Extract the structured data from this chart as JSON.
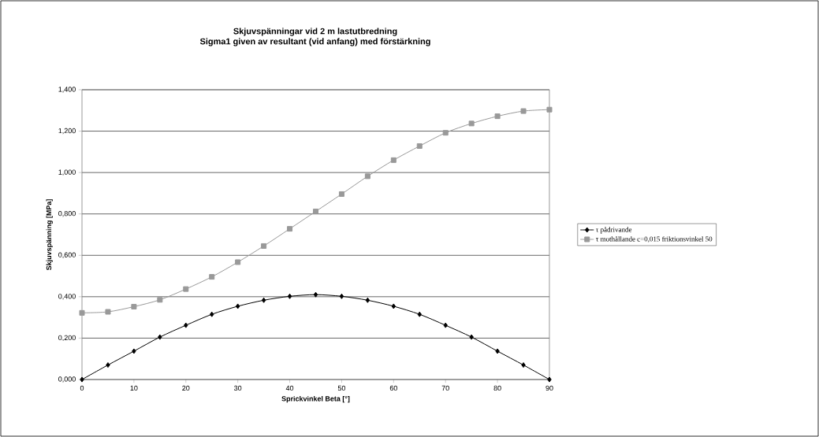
{
  "chart_data": {
    "type": "line",
    "title": "Skjuvspänningar vid 2 m lastutbredning",
    "subtitle": "Sigma1 given av resultant (vid anfang) med förstärkning",
    "xlabel": "Sprickvinkel Beta [°]",
    "ylabel": "Skjuvspänning [MPa]",
    "x": [
      0,
      5,
      10,
      15,
      20,
      25,
      30,
      35,
      40,
      45,
      50,
      55,
      60,
      65,
      70,
      75,
      80,
      85,
      90
    ],
    "series": [
      {
        "name": "τ pådrivande",
        "color": "#000000",
        "marker": "diamond",
        "values": [
          0,
          0.07,
          0.137,
          0.205,
          0.262,
          0.315,
          0.354,
          0.383,
          0.402,
          0.41,
          0.402,
          0.383,
          0.354,
          0.315,
          0.262,
          0.205,
          0.137,
          0.07,
          0
        ]
      },
      {
        "name": "τ mothållande c=0,015  friktionsvinkel 50",
        "color": "#999999",
        "marker": "square",
        "values": [
          0.322,
          0.327,
          0.352,
          0.385,
          0.437,
          0.496,
          0.567,
          0.645,
          0.728,
          0.812,
          0.896,
          0.982,
          1.06,
          1.128,
          1.192,
          1.237,
          1.272,
          1.297,
          1.304
        ]
      }
    ],
    "xlim": [
      0,
      90
    ],
    "xticks": [
      0,
      10,
      20,
      30,
      40,
      50,
      60,
      70,
      80,
      90
    ],
    "ylim": [
      0,
      1.4
    ],
    "yticks": [
      {
        "value": 0,
        "label": "0,000"
      },
      {
        "value": 0.2,
        "label": "0,200"
      },
      {
        "value": 0.4,
        "label": "0,400"
      },
      {
        "value": 0.6,
        "label": "0,600"
      },
      {
        "value": 0.8,
        "label": "0,800"
      },
      {
        "value": 1.0,
        "label": "1,000"
      },
      {
        "value": 1.2,
        "label": "1,200"
      },
      {
        "value": 1.4,
        "label": "1,400"
      }
    ],
    "grid": "y",
    "legend": "right",
    "line_style": "solid"
  }
}
